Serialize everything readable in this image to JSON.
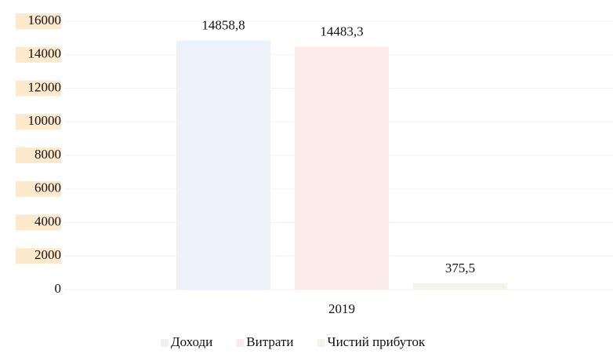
{
  "chart_data": {
    "type": "bar",
    "categories": [
      "2019"
    ],
    "series": [
      {
        "name": "Доходи",
        "color": "#edf1f9",
        "values": [
          14858.8
        ],
        "value_labels": [
          "14858,8"
        ]
      },
      {
        "name": "Витрати",
        "color": "#fbeceb",
        "values": [
          14483.3
        ],
        "value_labels": [
          "14483,3"
        ]
      },
      {
        "name": "Чистий прибуток",
        "color": "#f3f5e8",
        "values": [
          375.5
        ],
        "value_labels": [
          "375,5"
        ]
      }
    ],
    "ylim": [
      0,
      16000
    ],
    "yticks": [
      0,
      2000,
      4000,
      6000,
      8000,
      10000,
      12000,
      14000,
      16000
    ],
    "grid": true,
    "legend": "bottom"
  }
}
